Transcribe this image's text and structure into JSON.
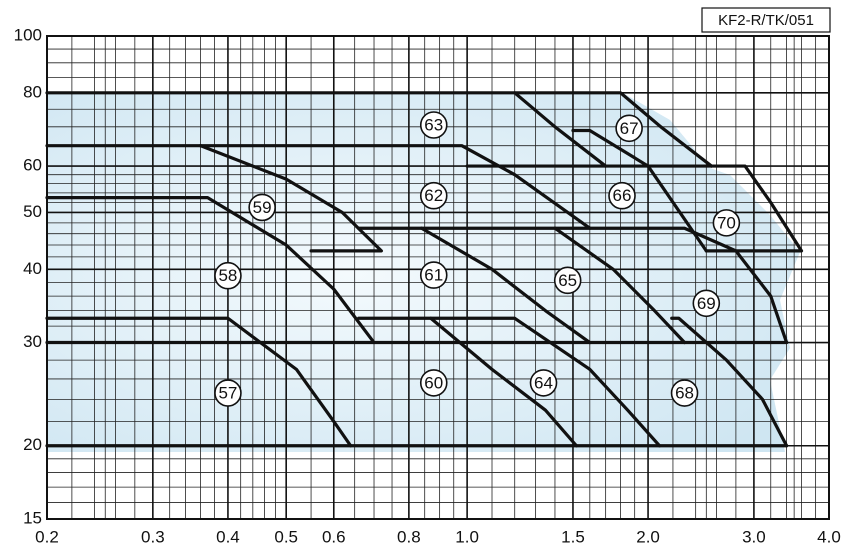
{
  "chart_data": {
    "type": "line",
    "code": "KF2-R/TK/051",
    "xscale": "log",
    "yscale": "log",
    "xlim": [
      0.2,
      4.0
    ],
    "ylim": [
      15,
      100
    ],
    "xticks": [
      0.2,
      0.3,
      0.4,
      0.5,
      0.6,
      0.8,
      {
        "value": 1,
        "label": "1.0"
      },
      1.5,
      {
        "value": 2,
        "label": "2.0"
      },
      {
        "value": 3,
        "label": "3.0"
      },
      {
        "value": 4,
        "label": "4.0"
      }
    ],
    "yticks": [
      15,
      20,
      30,
      40,
      50,
      60,
      80,
      100
    ],
    "x_minor_grid": [
      0.22,
      0.24,
      0.26,
      0.28,
      0.25,
      0.32,
      0.34,
      0.36,
      0.38,
      0.42,
      0.44,
      0.46,
      0.48,
      0.55,
      0.65,
      0.7,
      0.75,
      0.85,
      0.9,
      0.95,
      1.1,
      1.2,
      1.3,
      1.4,
      1.6,
      1.7,
      1.8,
      1.9,
      2.2,
      2.4,
      2.5,
      2.6,
      2.8,
      3.2,
      3.4,
      3.5,
      3.6,
      3.8
    ],
    "y_minor_grid": [
      16,
      17,
      18,
      19,
      22,
      24,
      26,
      28,
      32,
      34,
      36,
      38,
      42,
      44,
      46,
      48,
      52,
      54,
      56,
      58,
      65,
      70,
      75,
      85,
      90,
      95
    ],
    "grid": true,
    "series": [
      {
        "color": "#111111",
        "x": [
          0.2,
          1.2,
          1.4,
          1.7
        ],
        "y": [
          80,
          80,
          70,
          60
        ]
      },
      {
        "color": "#111111",
        "x": [
          1.2,
          1.8,
          2.1,
          2.55
        ],
        "y": [
          80,
          80,
          70,
          60
        ]
      },
      {
        "color": "#111111",
        "x": [
          1.0,
          2.9,
          3.2,
          3.6,
          2.5
        ],
        "y": [
          60,
          60,
          52,
          43,
          43
        ]
      },
      {
        "color": "#111111",
        "x": [
          1.5,
          1.6,
          2.0,
          2.5
        ],
        "y": [
          69,
          69,
          60,
          43
        ]
      },
      {
        "color": "#111111",
        "x": [
          0.2,
          0.36,
          0.5,
          0.62,
          0.72,
          0.55
        ],
        "y": [
          65,
          65,
          57,
          50,
          43,
          43
        ]
      },
      {
        "color": "#111111",
        "x": [
          0.36,
          0.98,
          1.2,
          1.6
        ],
        "y": [
          65,
          65,
          58,
          47
        ]
      },
      {
        "color": "#111111",
        "x": [
          0.2,
          0.37,
          0.5,
          0.6,
          0.7
        ],
        "y": [
          53,
          53,
          44,
          37,
          30
        ]
      },
      {
        "color": "#111111",
        "x": [
          0.66,
          2.3,
          2.8,
          3.2,
          3.4
        ],
        "y": [
          47,
          47,
          43,
          36,
          30
        ]
      },
      {
        "color": "#111111",
        "x": [
          0.84,
          1.1,
          1.35,
          1.6
        ],
        "y": [
          47,
          40,
          34,
          30
        ]
      },
      {
        "color": "#111111",
        "x": [
          1.4,
          1.75,
          2.05,
          2.3
        ],
        "y": [
          47,
          40,
          34,
          30
        ]
      },
      {
        "color": "#111111",
        "x": [
          0.2,
          3.4
        ],
        "y": [
          30,
          30
        ]
      },
      {
        "color": "#111111",
        "x": [
          0.2,
          0.4,
          0.52,
          0.6,
          0.64
        ],
        "y": [
          33,
          33,
          27,
          22,
          20
        ]
      },
      {
        "color": "#111111",
        "x": [
          0.66,
          1.2,
          1.6,
          1.85,
          2.09
        ],
        "y": [
          33,
          33,
          27,
          23,
          20
        ]
      },
      {
        "color": "#111111",
        "x": [
          0.87,
          1.1,
          1.35,
          1.52
        ],
        "y": [
          33,
          27,
          23,
          20
        ]
      },
      {
        "color": "#111111",
        "x": [
          2.19,
          2.25,
          2.7,
          3.1,
          3.4
        ],
        "y": [
          33,
          33,
          28,
          24,
          20
        ]
      },
      {
        "color": "#111111",
        "x": [
          0.2,
          3.4
        ],
        "y": [
          20,
          20
        ]
      }
    ],
    "annotations": [
      {
        "text": "57",
        "x": 0.4,
        "y": 24.6
      },
      {
        "text": "58",
        "x": 0.4,
        "y": 39
      },
      {
        "text": "59",
        "x": 0.456,
        "y": 51
      },
      {
        "text": "60",
        "x": 0.88,
        "y": 25.6
      },
      {
        "text": "61",
        "x": 0.88,
        "y": 39.1
      },
      {
        "text": "62",
        "x": 0.88,
        "y": 53.4
      },
      {
        "text": "63",
        "x": 0.88,
        "y": 70.5
      },
      {
        "text": "64",
        "x": 1.34,
        "y": 25.6
      },
      {
        "text": "65",
        "x": 1.47,
        "y": 38.3
      },
      {
        "text": "66",
        "x": 1.81,
        "y": 53.4
      },
      {
        "text": "67",
        "x": 1.86,
        "y": 69.6
      },
      {
        "text": "68",
        "x": 2.3,
        "y": 24.6
      },
      {
        "text": "69",
        "x": 2.5,
        "y": 35
      },
      {
        "text": "70",
        "x": 2.7,
        "y": 48
      }
    ]
  }
}
